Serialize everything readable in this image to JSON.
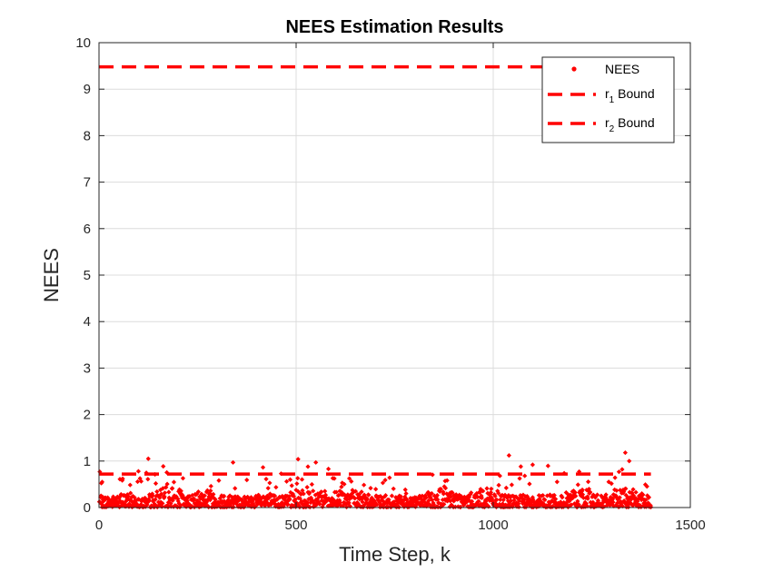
{
  "chart_data": {
    "type": "scatter",
    "title": "NEES Estimation Results",
    "xlabel": "Time Step, k",
    "ylabel": "NEES",
    "xlim": [
      0,
      1500
    ],
    "ylim": [
      0,
      10
    ],
    "xticks": [
      0,
      500,
      1000,
      1500
    ],
    "yticks": [
      0,
      1,
      2,
      3,
      4,
      5,
      6,
      7,
      8,
      9,
      10
    ],
    "grid": true,
    "legend_position": "top-right",
    "series": [
      {
        "name": "NEES",
        "style": "points",
        "color": "#ff0000",
        "n": 1400,
        "typical_range": [
          0.0,
          0.45
        ],
        "notable_points": [
          {
            "x": 2,
            "y": 0.12
          },
          {
            "x": 8,
            "y": 0.55
          },
          {
            "x": 60,
            "y": 0.62
          },
          {
            "x": 100,
            "y": 0.78
          },
          {
            "x": 125,
            "y": 1.05
          },
          {
            "x": 340,
            "y": 0.97
          },
          {
            "x": 505,
            "y": 1.04
          },
          {
            "x": 530,
            "y": 0.88
          },
          {
            "x": 550,
            "y": 0.97
          },
          {
            "x": 1040,
            "y": 1.12
          },
          {
            "x": 1100,
            "y": 0.92
          },
          {
            "x": 1335,
            "y": 1.18
          },
          {
            "x": 1345,
            "y": 1.0
          }
        ]
      },
      {
        "name": "r1 Bound",
        "style": "dashed",
        "color": "#ff0000",
        "x": [
          0,
          1400
        ],
        "y": [
          9.48,
          9.48
        ]
      },
      {
        "name": "r2 Bound",
        "style": "dashed",
        "color": "#ff0000",
        "x": [
          0,
          1400
        ],
        "y": [
          0.72,
          0.72
        ]
      }
    ]
  },
  "legend": {
    "entries": [
      {
        "main": "NEES",
        "sub": "",
        "rest": ""
      },
      {
        "main": "r",
        "sub": "1",
        "rest": " Bound"
      },
      {
        "main": "r",
        "sub": "2",
        "rest": " Bound"
      }
    ]
  },
  "colors": {
    "series": "#ff0000",
    "axis": "#262626",
    "grid": "#dcdcdc"
  }
}
